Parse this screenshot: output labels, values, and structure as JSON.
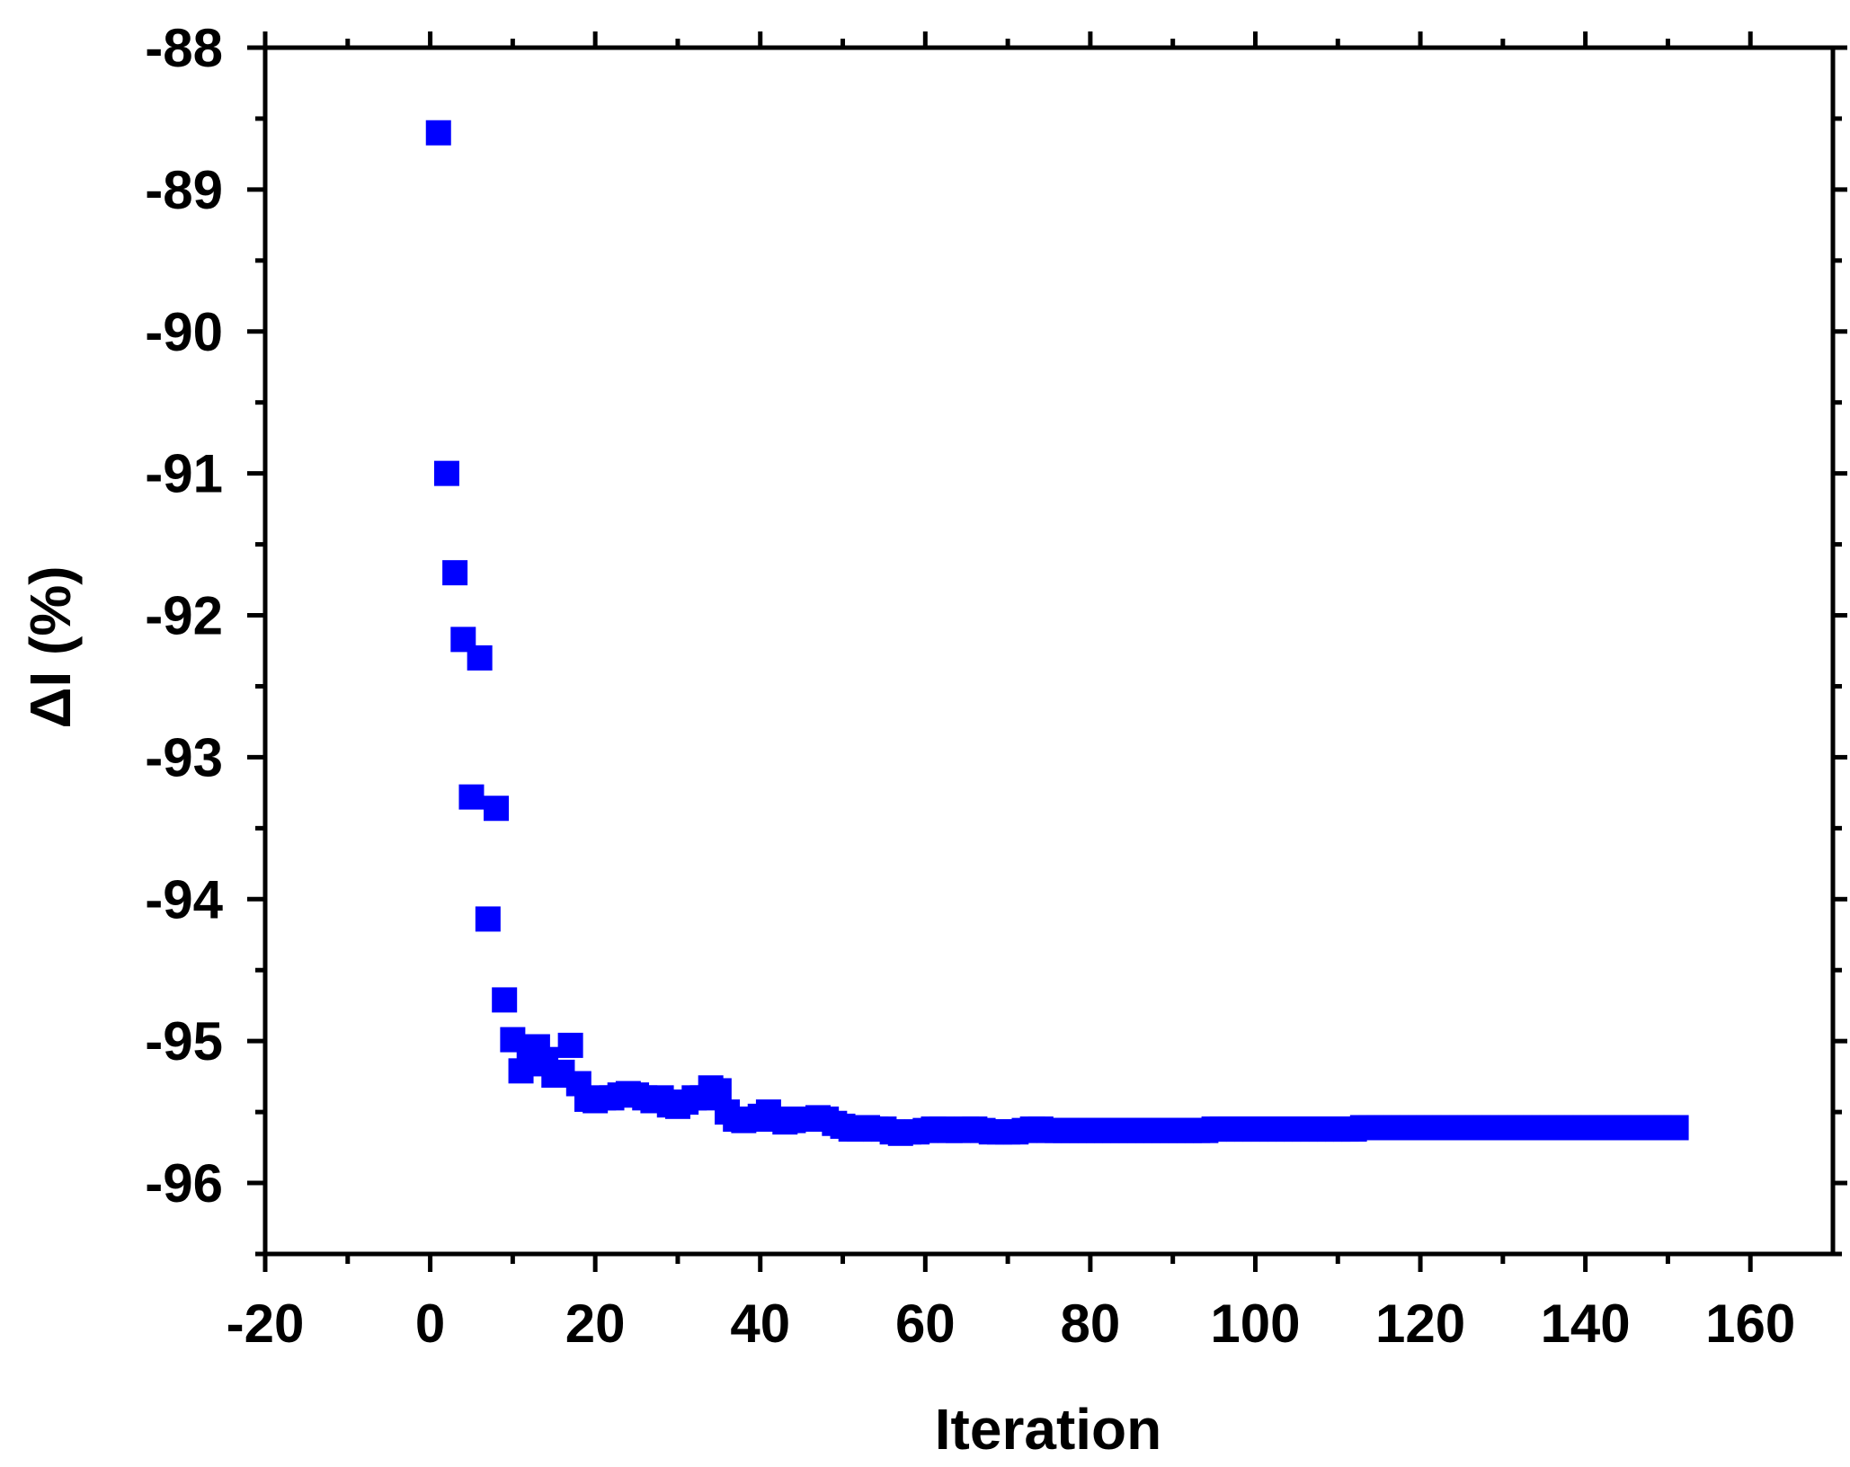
{
  "chart_data": {
    "type": "scatter",
    "title": "",
    "xlabel": "Iteration",
    "ylabel": "ΔI (%)",
    "xlim": [
      -20,
      170
    ],
    "ylim": [
      -96.5,
      -88
    ],
    "x_ticks": [
      -20,
      0,
      20,
      40,
      60,
      80,
      100,
      120,
      140,
      160
    ],
    "x_tick_labels": [
      "-20",
      "0",
      "20",
      "40",
      "60",
      "80",
      "100",
      "120",
      "140",
      "160"
    ],
    "y_ticks": [
      -88,
      -89,
      -90,
      -91,
      -92,
      -93,
      -94,
      -95,
      -96
    ],
    "y_tick_labels": [
      "-88",
      "-89",
      "-90",
      "-91",
      "-92",
      "-93",
      "-94",
      "-95",
      "-96"
    ],
    "grid": false,
    "legend": "none",
    "marker": "square",
    "marker_color": "#0000ff",
    "x": [
      1,
      2,
      3,
      4,
      5,
      6,
      7,
      8,
      9,
      10,
      11,
      12,
      13,
      14,
      15,
      16,
      17,
      18,
      19,
      20,
      21,
      22,
      23,
      24,
      25,
      26,
      27,
      28,
      29,
      30,
      31,
      32,
      33,
      34,
      35,
      36,
      37,
      38,
      39,
      40,
      41,
      42,
      43,
      44,
      45,
      46,
      47,
      48,
      49,
      50,
      51,
      52,
      53,
      54,
      55,
      56,
      57,
      58,
      59,
      60,
      61,
      62,
      63,
      64,
      65,
      66,
      67,
      68,
      69,
      70,
      71,
      72,
      73,
      74,
      75,
      76,
      77,
      78,
      79,
      80,
      81,
      82,
      83,
      84,
      85,
      86,
      87,
      88,
      89,
      90,
      91,
      92,
      93,
      94,
      95,
      96,
      97,
      98,
      99,
      100,
      101,
      102,
      103,
      104,
      105,
      106,
      107,
      108,
      109,
      110,
      111,
      112,
      113,
      114,
      115,
      116,
      117,
      118,
      119,
      120,
      121,
      122,
      123,
      124,
      125,
      126,
      127,
      128,
      129,
      130,
      131,
      132,
      133,
      134,
      135,
      136,
      137,
      138,
      139,
      140,
      141,
      142,
      143,
      144,
      145,
      146,
      147,
      148,
      149,
      150,
      151
    ],
    "y": [
      -88.6,
      -91.0,
      -91.7,
      -92.17,
      -93.28,
      -92.3,
      -94.14,
      -93.36,
      -94.71,
      -94.99,
      -95.21,
      -95.16,
      -95.04,
      -95.13,
      -95.24,
      -95.22,
      -95.03,
      -95.3,
      -95.41,
      -95.42,
      -95.4,
      -95.4,
      -95.38,
      -95.37,
      -95.38,
      -95.4,
      -95.42,
      -95.4,
      -95.45,
      -95.46,
      -95.43,
      -95.4,
      -95.4,
      -95.33,
      -95.35,
      -95.5,
      -95.55,
      -95.56,
      -95.55,
      -95.53,
      -95.5,
      -95.55,
      -95.57,
      -95.56,
      -95.55,
      -95.55,
      -95.54,
      -95.55,
      -95.58,
      -95.6,
      -95.62,
      -95.62,
      -95.61,
      -95.62,
      -95.62,
      -95.64,
      -95.65,
      -95.64,
      -95.64,
      -95.63,
      -95.62,
      -95.62,
      -95.63,
      -95.63,
      -95.62,
      -95.62,
      -95.63,
      -95.64,
      -95.64,
      -95.64,
      -95.64,
      -95.63,
      -95.62,
      -95.62,
      -95.63,
      -95.63,
      -95.63,
      -95.63,
      -95.63,
      -95.63,
      -95.63,
      -95.63,
      -95.63,
      -95.63,
      -95.63,
      -95.63,
      -95.63,
      -95.63,
      -95.63,
      -95.63,
      -95.63,
      -95.63,
      -95.63,
      -95.63,
      -95.62,
      -95.62,
      -95.62,
      -95.62,
      -95.62,
      -95.62,
      -95.62,
      -95.62,
      -95.62,
      -95.62,
      -95.62,
      -95.62,
      -95.62,
      -95.62,
      -95.62,
      -95.62,
      -95.62,
      -95.62,
      -95.61,
      -95.61,
      -95.61,
      -95.61,
      -95.61,
      -95.61,
      -95.61,
      -95.61,
      -95.61,
      -95.61,
      -95.61,
      -95.61,
      -95.61,
      -95.61,
      -95.61,
      -95.61,
      -95.61,
      -95.61,
      -95.61,
      -95.61,
      -95.61,
      -95.61,
      -95.61,
      -95.61,
      -95.61,
      -95.61,
      -95.61,
      -95.61,
      -95.61,
      -95.61,
      -95.61,
      -95.61,
      -95.61,
      -95.61,
      -95.61,
      -95.61,
      -95.61,
      -95.61,
      -95.61
    ]
  }
}
